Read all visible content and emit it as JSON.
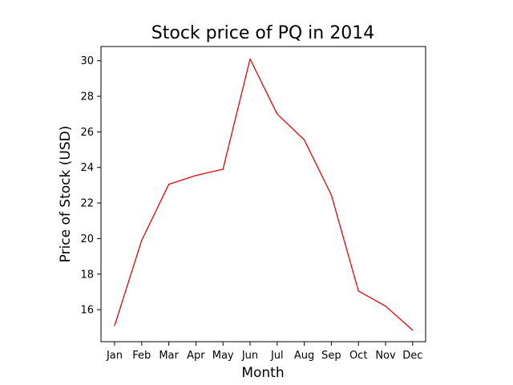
{
  "chart_data": {
    "type": "line",
    "title": "Stock price of PQ in 2014",
    "xlabel": "Month",
    "ylabel": "Price of Stock (USD)",
    "categories": [
      "Jan",
      "Feb",
      "Mar",
      "Apr",
      "May",
      "Jun",
      "Jul",
      "Aug",
      "Sep",
      "Oct",
      "Nov",
      "Dec"
    ],
    "series": [
      {
        "values": [
          15.1,
          19.9,
          23.05,
          23.55,
          23.9,
          30.1,
          27.0,
          25.55,
          22.45,
          17.05,
          16.2,
          14.85
        ],
        "color": "#e8000b"
      }
    ],
    "yticks": [
      16,
      18,
      20,
      22,
      24,
      26,
      28,
      30
    ],
    "ylim": [
      14.2,
      30.8
    ],
    "grid": false,
    "legend": "none"
  }
}
